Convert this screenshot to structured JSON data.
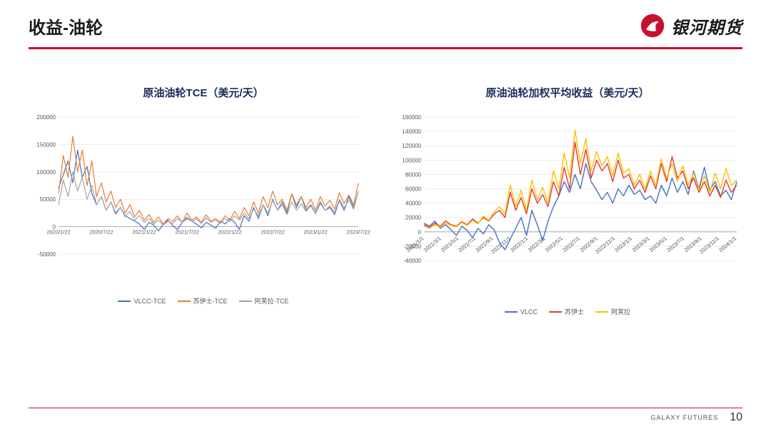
{
  "header": {
    "title": "收益-油轮",
    "brand": "银河期货"
  },
  "footer": {
    "label": "GALAXY FUTURES",
    "page_number": "10"
  },
  "colors": {
    "brand_red": "#c8102e",
    "brand_blue": "#1a2b5c",
    "divider": "#c8102e",
    "grid": "#d8d8d8",
    "text": "#555555",
    "series_blue": "#4472c4",
    "series_orange": "#ed7d31",
    "series_gray": "#a5a5a5",
    "series_red_line": "#e53935",
    "series_yellow": "#ffc000"
  },
  "chart_left": {
    "type": "line",
    "title": "原油油轮TCE（美元/天）",
    "ylim": [
      -50000,
      200000
    ],
    "ytick_step": 50000,
    "yticks": [
      "-50000",
      "0",
      "50000",
      "100000",
      "150000",
      "200000"
    ],
    "x_labels": [
      "2020/1/22",
      "2020/7/22",
      "2021/1/22",
      "2021/7/22",
      "2022/1/22",
      "2022/7/22",
      "2023/1/22",
      "2023/7/22"
    ],
    "line_width": 1.2,
    "legend_items": [
      "VLCC-TCE",
      "苏伊士-TCE",
      "阿芙拉-TCE"
    ],
    "legend_colors": [
      "#4472c4",
      "#ed7d31",
      "#a5a5a5"
    ],
    "series": {
      "vlcc": [
        70000,
        95000,
        120000,
        80000,
        140000,
        90000,
        110000,
        60000,
        40000,
        55000,
        30000,
        45000,
        25000,
        35000,
        20000,
        15000,
        10000,
        5000,
        -5000,
        8000,
        3000,
        -8000,
        5000,
        12000,
        2000,
        -5000,
        8000,
        15000,
        10000,
        5000,
        -2000,
        8000,
        3000,
        -3000,
        10000,
        5000,
        15000,
        8000,
        -5000,
        20000,
        10000,
        35000,
        15000,
        40000,
        20000,
        50000,
        30000,
        45000,
        25000,
        60000,
        35000,
        55000,
        30000,
        40000,
        25000,
        45000,
        30000,
        35000,
        22000,
        48000,
        30000,
        55000,
        35000,
        65000
      ],
      "suez": [
        60000,
        130000,
        90000,
        165000,
        100000,
        140000,
        75000,
        120000,
        55000,
        80000,
        45000,
        65000,
        35000,
        50000,
        25000,
        40000,
        18000,
        30000,
        12000,
        22000,
        8000,
        18000,
        5000,
        15000,
        10000,
        20000,
        8000,
        25000,
        12000,
        18000,
        8000,
        22000,
        10000,
        15000,
        8000,
        20000,
        12000,
        28000,
        15000,
        35000,
        20000,
        45000,
        25000,
        55000,
        35000,
        65000,
        40000,
        50000,
        30000,
        60000,
        40000,
        55000,
        35000,
        50000,
        30000,
        55000,
        38000,
        48000,
        32000,
        62000,
        42000,
        58000,
        40000,
        80000
      ],
      "afra": [
        40000,
        85000,
        55000,
        100000,
        65000,
        90000,
        50000,
        75000,
        40000,
        55000,
        30000,
        45000,
        22000,
        35000,
        18000,
        28000,
        12000,
        20000,
        8000,
        15000,
        5000,
        12000,
        3000,
        10000,
        6000,
        15000,
        8000,
        18000,
        10000,
        14000,
        6000,
        16000,
        8000,
        12000,
        6000,
        15000,
        9000,
        20000,
        12000,
        25000,
        15000,
        32000,
        20000,
        40000,
        25000,
        48000,
        30000,
        40000,
        22000,
        45000,
        30000,
        42000,
        28000,
        38000,
        24000,
        42000,
        30000,
        38000,
        26000,
        50000,
        35000,
        48000,
        32000,
        65000
      ]
    }
  },
  "chart_right": {
    "type": "line",
    "title": "原油油轮加权平均收益（美元/天）",
    "ylim": [
      -40000,
      160000
    ],
    "ytick_step": 20000,
    "yticks": [
      "-40000",
      "-20000",
      "0",
      "20000",
      "40000",
      "60000",
      "80000",
      "100000",
      "120000",
      "140000",
      "160000"
    ],
    "x_labels": [
      "2021/1/1",
      "2021/3/1",
      "2021/5/1",
      "2021/7/1",
      "2021/9/1",
      "2021/11/1",
      "2022/1/1",
      "2022/3/1",
      "2022/5/1",
      "2022/7/1",
      "2022/9/1",
      "2022/11/1",
      "2023/1/1",
      "2023/3/1",
      "2023/5/1",
      "2023/7/1",
      "2023/9/1",
      "2023/11/1",
      "2024/1/1"
    ],
    "line_width": 1.4,
    "legend_items": [
      "VLCC",
      "苏伊士",
      "阿芙拉"
    ],
    "legend_colors": [
      "#4472c4",
      "#e53935",
      "#ffc000"
    ],
    "series": {
      "vlcc": [
        12000,
        8000,
        15000,
        5000,
        10000,
        3000,
        -5000,
        8000,
        2000,
        -8000,
        5000,
        -3000,
        10000,
        3000,
        -15000,
        -25000,
        -10000,
        5000,
        20000,
        -5000,
        30000,
        10000,
        -12000,
        15000,
        35000,
        50000,
        70000,
        55000,
        80000,
        60000,
        95000,
        70000,
        58000,
        45000,
        55000,
        40000,
        60000,
        50000,
        65000,
        52000,
        58000,
        45000,
        50000,
        40000,
        65000,
        50000,
        75000,
        55000,
        70000,
        52000,
        85000,
        60000,
        90000,
        58000,
        70000,
        50000,
        58000,
        45000,
        70000
      ],
      "suez": [
        10000,
        6000,
        12000,
        8000,
        15000,
        10000,
        8000,
        14000,
        10000,
        18000,
        12000,
        20000,
        15000,
        25000,
        30000,
        20000,
        55000,
        30000,
        48000,
        25000,
        60000,
        40000,
        52000,
        35000,
        70000,
        50000,
        90000,
        60000,
        125000,
        80000,
        115000,
        75000,
        100000,
        85000,
        95000,
        70000,
        100000,
        75000,
        80000,
        60000,
        72000,
        55000,
        78000,
        60000,
        95000,
        70000,
        105000,
        75000,
        85000,
        60000,
        75000,
        55000,
        70000,
        50000,
        65000,
        48000,
        72000,
        55000,
        65000
      ],
      "afra": [
        8000,
        5000,
        10000,
        7000,
        12000,
        9000,
        7000,
        13000,
        9000,
        16000,
        11000,
        22000,
        16000,
        28000,
        35000,
        25000,
        65000,
        35000,
        58000,
        30000,
        72000,
        45000,
        62000,
        40000,
        85000,
        60000,
        110000,
        75000,
        142000,
        95000,
        130000,
        85000,
        112000,
        92000,
        105000,
        78000,
        110000,
        82000,
        88000,
        65000,
        80000,
        60000,
        85000,
        65000,
        102000,
        75000,
        95000,
        70000,
        92000,
        65000,
        82000,
        58000,
        78000,
        55000,
        82000,
        60000,
        88000,
        65000,
        72000
      ]
    }
  }
}
